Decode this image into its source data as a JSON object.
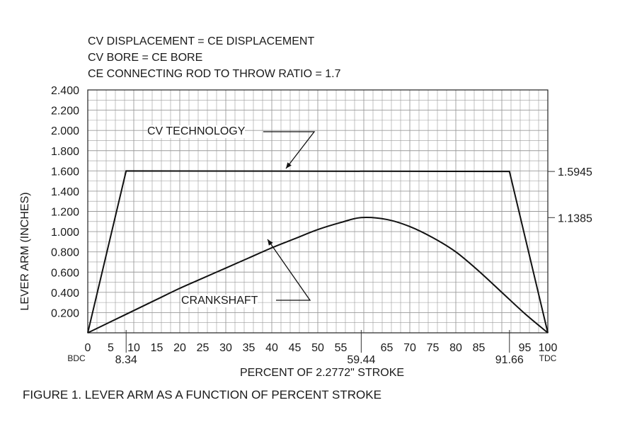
{
  "notes": [
    "CV DISPLACEMENT = CE DISPLACEMENT",
    "CV BORE = CE BORE",
    "CE CONNECTING ROD TO THROW RATIO =  1.7"
  ],
  "caption": "FIGURE 1.  LEVER ARM AS A FUNCTION OF PERCENT STROKE",
  "chart_data": {
    "type": "line",
    "xlabel": "PERCENT OF 2.2772\" STROKE",
    "ylabel": "LEVER ARM (INCHES)",
    "xlim": [
      0,
      100
    ],
    "ylim": [
      0,
      2.4
    ],
    "grid": true,
    "x_ticks": [
      "0",
      "5",
      "10",
      "15",
      "20",
      "25",
      "30",
      "35",
      "40",
      "45",
      "50",
      "55",
      "65",
      "70",
      "75",
      "80",
      "85",
      "95",
      "100"
    ],
    "y_ticks": [
      "0.200",
      "0.400",
      "0.600",
      "0.800",
      "1.000",
      "1.200",
      "1.400",
      "1.600",
      "1.800",
      "2.000",
      "2.200",
      "2.400"
    ],
    "x_marks": [
      {
        "x": 8.34,
        "text": "8.34"
      },
      {
        "x": 59.44,
        "text": "59.44"
      },
      {
        "x": 91.66,
        "text": "91.66"
      }
    ],
    "end_labels": [
      {
        "x": 0,
        "text": "BDC"
      },
      {
        "x": 100,
        "text": "TDC"
      }
    ],
    "right_values": [
      {
        "y": 1.5945,
        "text": "1.5945"
      },
      {
        "y": 1.1385,
        "text": "1.1385"
      }
    ],
    "series": [
      {
        "name": "CV TECHNOLOGY",
        "x": [
          0,
          8.34,
          91.66,
          100
        ],
        "y": [
          0,
          1.6,
          1.5945,
          0
        ]
      },
      {
        "name": "CRANKSHAFT",
        "x": [
          0,
          5,
          10,
          15,
          20,
          25,
          30,
          35,
          40,
          45,
          50,
          55,
          59.44,
          65,
          70,
          75,
          80,
          85,
          90,
          95,
          100
        ],
        "y": [
          0,
          0.11,
          0.22,
          0.33,
          0.44,
          0.54,
          0.64,
          0.74,
          0.84,
          0.93,
          1.02,
          1.09,
          1.1385,
          1.12,
          1.05,
          0.94,
          0.8,
          0.61,
          0.4,
          0.19,
          0
        ]
      }
    ]
  }
}
